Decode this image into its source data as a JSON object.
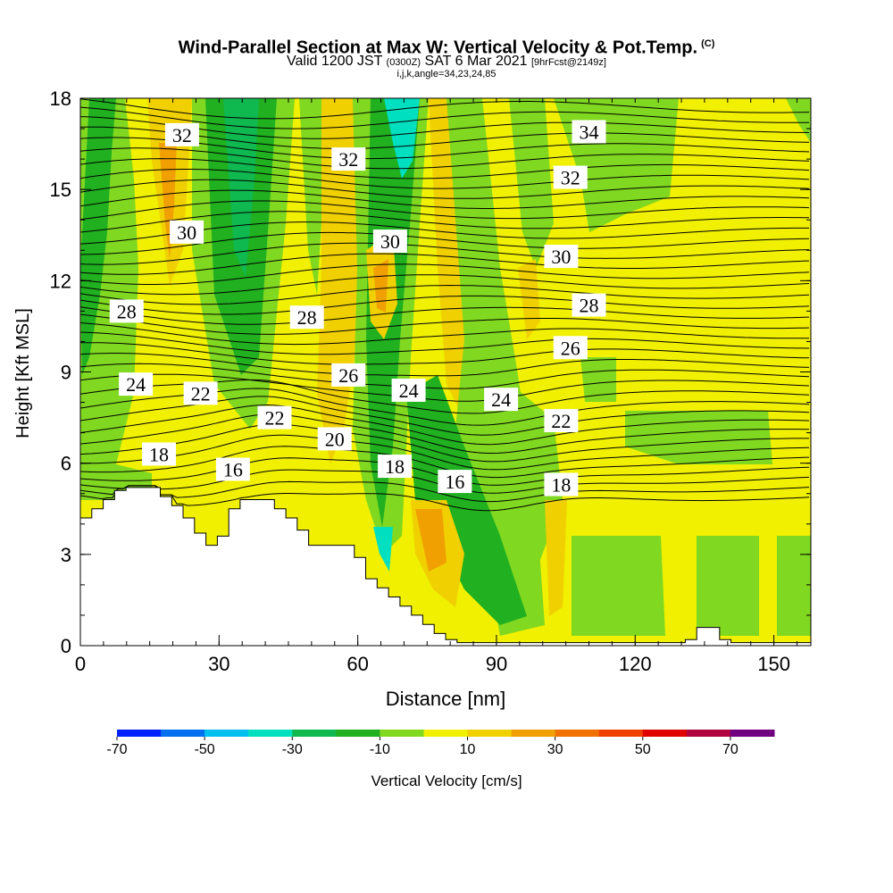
{
  "chart_data": {
    "type": "heatmap",
    "title": "Wind-Parallel Section at Max W: Vertical Velocity & Pot.Temp.",
    "title_mark": "(C)",
    "subtitle": {
      "valid": "Valid 1200 JST",
      "utc": "(0300Z)",
      "date": "SAT 6 Mar 2021",
      "fcst": "[9hrFcst@2149z]"
    },
    "subtitle2": "i,j,k,angle=34,23,24,85",
    "xlabel": "Distance [nm]",
    "ylabel": "Height [Kft MSL]",
    "xlim": [
      0,
      158
    ],
    "ylim": [
      0,
      18
    ],
    "x_ticks": [
      "0",
      "30",
      "60",
      "90",
      "120",
      "150"
    ],
    "y_ticks": [
      "0",
      "3",
      "6",
      "9",
      "12",
      "15",
      "18"
    ],
    "colorbar": {
      "label": "Vertical Velocity [cm/s]",
      "tick_labels": [
        "-70",
        "-50",
        "-30",
        "-10",
        "10",
        "30",
        "50",
        "70"
      ],
      "colors": [
        "#0020ff",
        "#0070f0",
        "#00c0f0",
        "#00e0c0",
        "#10b850",
        "#20b020",
        "#80d820",
        "#f0f000",
        "#f0d000",
        "#f0a000",
        "#f07000",
        "#f04000",
        "#e00000",
        "#b00040",
        "#700080"
      ]
    },
    "contour_labels": [
      {
        "text": "32",
        "x": 22,
        "y": 16.8
      },
      {
        "text": "32",
        "x": 58,
        "y": 16.0
      },
      {
        "text": "34",
        "x": 110,
        "y": 16.9
      },
      {
        "text": "32",
        "x": 106,
        "y": 15.4
      },
      {
        "text": "30",
        "x": 23,
        "y": 13.6
      },
      {
        "text": "30",
        "x": 67,
        "y": 13.3
      },
      {
        "text": "30",
        "x": 104,
        "y": 12.8
      },
      {
        "text": "28",
        "x": 10,
        "y": 11.0
      },
      {
        "text": "28",
        "x": 49,
        "y": 10.8
      },
      {
        "text": "28",
        "x": 110,
        "y": 11.2
      },
      {
        "text": "26",
        "x": 58,
        "y": 8.9
      },
      {
        "text": "26",
        "x": 106,
        "y": 9.8
      },
      {
        "text": "24",
        "x": 12,
        "y": 8.6
      },
      {
        "text": "22",
        "x": 26,
        "y": 8.3
      },
      {
        "text": "24",
        "x": 71,
        "y": 8.4
      },
      {
        "text": "24",
        "x": 91,
        "y": 8.1
      },
      {
        "text": "22",
        "x": 42,
        "y": 7.5
      },
      {
        "text": "22",
        "x": 104,
        "y": 7.4
      },
      {
        "text": "20",
        "x": 55,
        "y": 6.8
      },
      {
        "text": "18",
        "x": 17,
        "y": 6.3
      },
      {
        "text": "16",
        "x": 33,
        "y": 5.8
      },
      {
        "text": "18",
        "x": 68,
        "y": 5.9
      },
      {
        "text": "16",
        "x": 81,
        "y": 5.4
      },
      {
        "text": "18",
        "x": 104,
        "y": 5.3
      }
    ],
    "terrain_heights": [
      4.2,
      4.5,
      4.8,
      5.1,
      5.2,
      5.2,
      5.2,
      4.9,
      4.6,
      4.2,
      3.7,
      3.3,
      3.6,
      4.5,
      4.8,
      4.8,
      4.8,
      4.5,
      4.2,
      3.8,
      3.3,
      3.3,
      3.3,
      3.3,
      2.9,
      2.2,
      1.9,
      1.6,
      1.3,
      1.0,
      0.7,
      0.4,
      0.2,
      0.1,
      0.1,
      0.1,
      0.1,
      0.1,
      0.1,
      0.1,
      0.1,
      0.1,
      0.1,
      0.1,
      0.1,
      0.1,
      0.1,
      0.1,
      0.1,
      0.1,
      0.1,
      0.1,
      0.1,
      0.2,
      0.6,
      0.6,
      0.2,
      0.1,
      0.1,
      0.1,
      0.1,
      0.1,
      0.1,
      0.1
    ]
  }
}
